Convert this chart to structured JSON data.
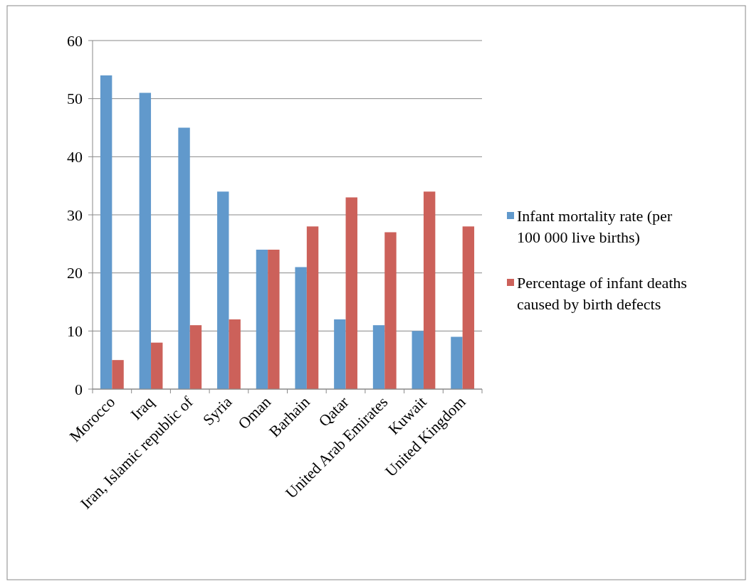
{
  "chart_data": {
    "type": "bar",
    "categories": [
      "Morocco",
      "Iraq",
      "Iran, Islamic republic of",
      "Syria",
      "Oman",
      "Barhain",
      "Qatar",
      "United Arab Emirates",
      "Kuwait",
      "United Kingdom"
    ],
    "series": [
      {
        "name": "Infant mortality rate (per 100 000 live births)",
        "color": "#6199cc",
        "values": [
          54,
          51,
          45,
          34,
          24,
          21,
          12,
          11,
          10,
          9
        ]
      },
      {
        "name": "Percentage of infant deaths caused by birth defects",
        "color": "#cc615a",
        "values": [
          5,
          8,
          11,
          12,
          24,
          28,
          33,
          27,
          34,
          28
        ]
      }
    ],
    "ylim": [
      0,
      60
    ],
    "yticks": [
      0,
      10,
      20,
      30,
      40,
      50,
      60
    ],
    "grid": "y",
    "legend": "right"
  }
}
